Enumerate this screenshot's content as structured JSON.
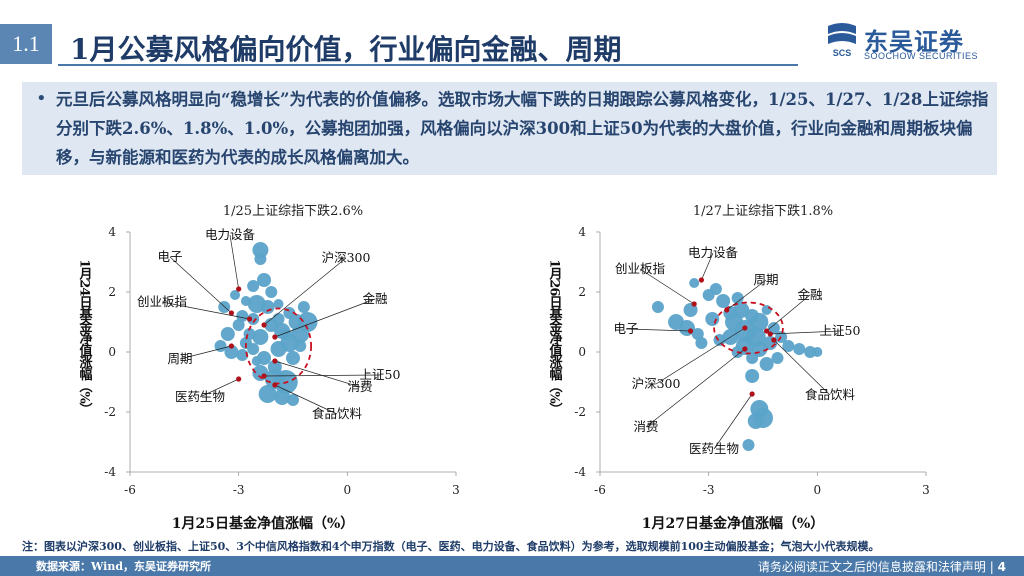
{
  "header": {
    "section_number": "1.1",
    "title": "1月公募风格偏向价值，行业偏向金融、周期"
  },
  "logo": {
    "name_cn": "东吴证券",
    "name_en": "SOOCHOW SECURITIES",
    "mark_text": "SCS"
  },
  "summary": {
    "bullet": "•",
    "text": "元旦后公募风格明显向“稳增长”为代表的价值偏移。选取市场大幅下跌的日期跟踪公募风格变化，1/25、1/27、1/28上证综指分别下跌2.6%、1.8%、1.0%，公募抱团加强，风格偏向以沪深300和上证50为代表的大盘价值，行业向金融和周期板块偏移，与新能源和医药为代表的成长风格偏离加大。"
  },
  "chart_data": [
    {
      "type": "scatter",
      "title": "1/25上证综指下跌2.6%",
      "xlabel": "1月25日基金净值涨幅（%）",
      "ylabel": "1月24日基金净值涨幅（%）",
      "xlim": [
        -6,
        3
      ],
      "ylim": [
        -4,
        4
      ],
      "xticks": [
        "-6",
        "-3",
        "0",
        "3"
      ],
      "yticks": [
        "4",
        "2",
        "0",
        "-2",
        "-4"
      ],
      "point_color": "#5ba3c9",
      "marker_color": "#b0101a",
      "circle_color": "#c8101e",
      "bubbles": [
        {
          "x": -2.4,
          "y": 3.4,
          "s": 8
        },
        {
          "x": -2.4,
          "y": 3.1,
          "s": 6
        },
        {
          "x": -2.3,
          "y": 2.4,
          "s": 7
        },
        {
          "x": -2.6,
          "y": 2.2,
          "s": 6
        },
        {
          "x": -2.1,
          "y": 2.0,
          "s": 6
        },
        {
          "x": -2.8,
          "y": 1.7,
          "s": 5
        },
        {
          "x": -2.5,
          "y": 1.6,
          "s": 9
        },
        {
          "x": -2.2,
          "y": 1.5,
          "s": 7
        },
        {
          "x": -1.9,
          "y": 1.6,
          "s": 5
        },
        {
          "x": -1.6,
          "y": 1.3,
          "s": 6
        },
        {
          "x": -1.4,
          "y": 1.0,
          "s": 8
        },
        {
          "x": -1.1,
          "y": 1.0,
          "s": 10
        },
        {
          "x": -1.3,
          "y": 0.6,
          "s": 9
        },
        {
          "x": -1.8,
          "y": 0.7,
          "s": 8
        },
        {
          "x": -2.1,
          "y": 0.9,
          "s": 7
        },
        {
          "x": -2.4,
          "y": 0.5,
          "s": 8
        },
        {
          "x": -2.7,
          "y": 0.6,
          "s": 6
        },
        {
          "x": -3.0,
          "y": 0.9,
          "s": 6
        },
        {
          "x": -3.3,
          "y": 0.6,
          "s": 7
        },
        {
          "x": -3.5,
          "y": 0.2,
          "s": 6
        },
        {
          "x": -3.2,
          "y": 0.0,
          "s": 7
        },
        {
          "x": -2.9,
          "y": -0.1,
          "s": 6
        },
        {
          "x": -2.6,
          "y": 0.1,
          "s": 6
        },
        {
          "x": -2.3,
          "y": -0.2,
          "s": 7
        },
        {
          "x": -1.9,
          "y": 0.1,
          "s": 8
        },
        {
          "x": -1.6,
          "y": 0.3,
          "s": 9
        },
        {
          "x": -1.5,
          "y": -0.2,
          "s": 7
        },
        {
          "x": -2.0,
          "y": -0.5,
          "s": 7
        },
        {
          "x": -2.4,
          "y": -0.7,
          "s": 8
        },
        {
          "x": -2.0,
          "y": -0.9,
          "s": 10
        },
        {
          "x": -1.7,
          "y": -1.0,
          "s": 12
        },
        {
          "x": -2.9,
          "y": 1.2,
          "s": 6
        },
        {
          "x": -3.4,
          "y": 1.5,
          "s": 6
        },
        {
          "x": -3.1,
          "y": 1.9,
          "s": 5
        },
        {
          "x": -1.9,
          "y": 1.1,
          "s": 6
        },
        {
          "x": -1.2,
          "y": 1.5,
          "s": 6
        },
        {
          "x": -2.2,
          "y": -1.4,
          "s": 9
        },
        {
          "x": -1.8,
          "y": -1.5,
          "s": 8
        },
        {
          "x": -1.5,
          "y": -1.6,
          "s": 6
        },
        {
          "x": -2.6,
          "y": 1.1,
          "s": 6
        },
        {
          "x": -2.8,
          "y": 0.3,
          "s": 6
        },
        {
          "x": -1.7,
          "y": 0.6,
          "s": 6
        },
        {
          "x": -1.3,
          "y": 0.2,
          "s": 6
        },
        {
          "x": -2.5,
          "y": -0.3,
          "s": 5
        }
      ],
      "circle": {
        "cx": -1.9,
        "cy": 0.2,
        "rx": 0.9,
        "ry": 1.25
      },
      "markers": [
        {
          "x": -3.0,
          "y": 2.1,
          "label": "电力设备"
        },
        {
          "x": -3.2,
          "y": 1.3,
          "label": "电子"
        },
        {
          "x": -2.7,
          "y": 1.1,
          "label": "创业板指"
        },
        {
          "x": -3.2,
          "y": 0.2,
          "label": "周期"
        },
        {
          "x": -3.0,
          "y": -0.9,
          "label": "医药生物"
        },
        {
          "x": -2.3,
          "y": 0.9,
          "label": "沪深300"
        },
        {
          "x": -2.0,
          "y": 0.5,
          "label": "金融"
        },
        {
          "x": -2.3,
          "y": -0.8,
          "label": "上证50"
        },
        {
          "x": -2.0,
          "y": -0.3,
          "label": "消费"
        },
        {
          "x": -2.0,
          "y": -1.1,
          "label": "食品饮料"
        }
      ]
    },
    {
      "type": "scatter",
      "title": "1/27上证综指下跌1.8%",
      "xlabel": "1月27日基金净值涨幅（%）",
      "ylabel": "1月26日基金净值涨幅（%）",
      "xlim": [
        -6,
        3
      ],
      "ylim": [
        -4,
        4
      ],
      "xticks": [
        "-6",
        "-3",
        "0",
        "3"
      ],
      "yticks": [
        "4",
        "2",
        "0",
        "-2",
        "-4"
      ],
      "point_color": "#5ba3c9",
      "marker_color": "#b0101a",
      "circle_color": "#c8101e",
      "bubbles": [
        {
          "x": -4.4,
          "y": 1.5,
          "s": 6
        },
        {
          "x": -3.9,
          "y": 1.0,
          "s": 8
        },
        {
          "x": -3.5,
          "y": 1.4,
          "s": 7
        },
        {
          "x": -3.6,
          "y": 0.8,
          "s": 8
        },
        {
          "x": -3.2,
          "y": 0.3,
          "s": 6
        },
        {
          "x": -3.4,
          "y": 2.3,
          "s": 5
        },
        {
          "x": -3.0,
          "y": 1.9,
          "s": 6
        },
        {
          "x": -2.8,
          "y": 2.1,
          "s": 6
        },
        {
          "x": -2.6,
          "y": 1.7,
          "s": 7
        },
        {
          "x": -2.4,
          "y": 1.3,
          "s": 7
        },
        {
          "x": -2.1,
          "y": 1.4,
          "s": 8
        },
        {
          "x": -1.8,
          "y": 1.2,
          "s": 7
        },
        {
          "x": -1.6,
          "y": 1.0,
          "s": 9
        },
        {
          "x": -2.3,
          "y": 1.0,
          "s": 9
        },
        {
          "x": -2.0,
          "y": 0.7,
          "s": 11
        },
        {
          "x": -1.7,
          "y": 0.5,
          "s": 10
        },
        {
          "x": -2.4,
          "y": 0.5,
          "s": 8
        },
        {
          "x": -2.0,
          "y": 0.2,
          "s": 9
        },
        {
          "x": -1.6,
          "y": 0.1,
          "s": 8
        },
        {
          "x": -1.3,
          "y": 0.3,
          "s": 7
        },
        {
          "x": -1.0,
          "y": 0.5,
          "s": 6
        },
        {
          "x": -0.8,
          "y": 0.2,
          "s": 6
        },
        {
          "x": -0.5,
          "y": 0.1,
          "s": 6
        },
        {
          "x": -0.2,
          "y": 0.0,
          "s": 6
        },
        {
          "x": 0.0,
          "y": 0.0,
          "s": 5
        },
        {
          "x": -1.1,
          "y": -0.2,
          "s": 6
        },
        {
          "x": -1.4,
          "y": -0.4,
          "s": 7
        },
        {
          "x": -1.8,
          "y": -0.2,
          "s": 6
        },
        {
          "x": -2.2,
          "y": 0.0,
          "s": 6
        },
        {
          "x": -2.7,
          "y": 0.4,
          "s": 6
        },
        {
          "x": -2.9,
          "y": 1.1,
          "s": 7
        },
        {
          "x": -1.8,
          "y": -0.8,
          "s": 7
        },
        {
          "x": -1.6,
          "y": -1.9,
          "s": 9
        },
        {
          "x": -1.5,
          "y": -2.2,
          "s": 10
        },
        {
          "x": -1.7,
          "y": -2.3,
          "s": 8
        },
        {
          "x": -1.9,
          "y": -3.1,
          "s": 6
        },
        {
          "x": -2.2,
          "y": 1.8,
          "s": 6
        },
        {
          "x": -1.4,
          "y": 1.4,
          "s": 5
        },
        {
          "x": -3.3,
          "y": 0.6,
          "s": 6
        },
        {
          "x": -1.2,
          "y": 0.8,
          "s": 6
        }
      ],
      "circle": {
        "cx": -1.9,
        "cy": 0.8,
        "rx": 0.95,
        "ry": 0.85
      },
      "markers": [
        {
          "x": -3.2,
          "y": 2.4,
          "label": "电力设备"
        },
        {
          "x": -3.4,
          "y": 1.6,
          "label": "创业板指"
        },
        {
          "x": -2.5,
          "y": 1.4,
          "label": "周期"
        },
        {
          "x": -3.5,
          "y": 0.7,
          "label": "电子"
        },
        {
          "x": -1.4,
          "y": 0.7,
          "label": "金融"
        },
        {
          "x": -1.3,
          "y": 0.6,
          "label": "上证50"
        },
        {
          "x": -2.0,
          "y": 0.8,
          "label": "沪深300"
        },
        {
          "x": -2.0,
          "y": 0.1,
          "label": "消费"
        },
        {
          "x": -1.2,
          "y": 0.4,
          "label": "食品饮料"
        },
        {
          "x": -1.8,
          "y": -1.4,
          "label": "医药生物"
        }
      ]
    }
  ],
  "note": "注：图表以沪深300、创业板指、上证50、3个中信风格指数和4个申万指数（电子、医药、电力设备、食品饮料）为参考，选取规模前100主动偏股基金；气泡大小代表规模。",
  "footer": {
    "source": "数据来源：Wind，东吴证券研究所",
    "disclaimer": "请务必阅读正文之后的信息披露和法律声明",
    "separator": "|",
    "page_number": "4"
  }
}
